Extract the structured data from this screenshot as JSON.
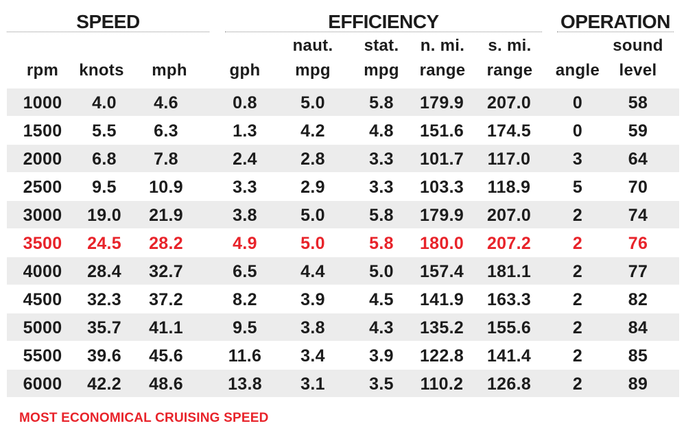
{
  "groups": {
    "speed": "SPEED",
    "efficiency": "EFFICIENCY",
    "operation": "OPERATION"
  },
  "headers": {
    "rpm": "rpm",
    "knots": "knots",
    "mph": "mph",
    "gph": "gph",
    "naut_mpg_top": "naut.",
    "naut_mpg": "mpg",
    "stat_mpg_top": "stat.",
    "stat_mpg": "mpg",
    "nmi_range_top": "n. mi.",
    "nmi_range": "range",
    "smi_range_top": "s. mi.",
    "smi_range": "range",
    "angle": "angle",
    "sound_top": "sound",
    "sound": "level"
  },
  "rows": [
    {
      "rpm": "1000",
      "knots": "4.0",
      "mph": "4.6",
      "gph": "0.8",
      "naut_mpg": "5.0",
      "stat_mpg": "5.8",
      "nmi_range": "179.9",
      "smi_range": "207.0",
      "angle": "0",
      "sound": "58"
    },
    {
      "rpm": "1500",
      "knots": "5.5",
      "mph": "6.3",
      "gph": "1.3",
      "naut_mpg": "4.2",
      "stat_mpg": "4.8",
      "nmi_range": "151.6",
      "smi_range": "174.5",
      "angle": "0",
      "sound": "59"
    },
    {
      "rpm": "2000",
      "knots": "6.8",
      "mph": "7.8",
      "gph": "2.4",
      "naut_mpg": "2.8",
      "stat_mpg": "3.3",
      "nmi_range": "101.7",
      "smi_range": "117.0",
      "angle": "3",
      "sound": "64"
    },
    {
      "rpm": "2500",
      "knots": "9.5",
      "mph": "10.9",
      "gph": "3.3",
      "naut_mpg": "2.9",
      "stat_mpg": "3.3",
      "nmi_range": "103.3",
      "smi_range": "118.9",
      "angle": "5",
      "sound": "70"
    },
    {
      "rpm": "3000",
      "knots": "19.0",
      "mph": "21.9",
      "gph": "3.8",
      "naut_mpg": "5.0",
      "stat_mpg": "5.8",
      "nmi_range": "179.9",
      "smi_range": "207.0",
      "angle": "2",
      "sound": "74"
    },
    {
      "rpm": "3500",
      "knots": "24.5",
      "mph": "28.2",
      "gph": "4.9",
      "naut_mpg": "5.0",
      "stat_mpg": "5.8",
      "nmi_range": "180.0",
      "smi_range": "207.2",
      "angle": "2",
      "sound": "76",
      "highlight": true
    },
    {
      "rpm": "4000",
      "knots": "28.4",
      "mph": "32.7",
      "gph": "6.5",
      "naut_mpg": "4.4",
      "stat_mpg": "5.0",
      "nmi_range": "157.4",
      "smi_range": "181.1",
      "angle": "2",
      "sound": "77"
    },
    {
      "rpm": "4500",
      "knots": "32.3",
      "mph": "37.2",
      "gph": "8.2",
      "naut_mpg": "3.9",
      "stat_mpg": "4.5",
      "nmi_range": "141.9",
      "smi_range": "163.3",
      "angle": "2",
      "sound": "82"
    },
    {
      "rpm": "5000",
      "knots": "35.7",
      "mph": "41.1",
      "gph": "9.5",
      "naut_mpg": "3.8",
      "stat_mpg": "4.3",
      "nmi_range": "135.2",
      "smi_range": "155.6",
      "angle": "2",
      "sound": "84"
    },
    {
      "rpm": "5500",
      "knots": "39.6",
      "mph": "45.6",
      "gph": "11.6",
      "naut_mpg": "3.4",
      "stat_mpg": "3.9",
      "nmi_range": "122.8",
      "smi_range": "141.4",
      "angle": "2",
      "sound": "85"
    },
    {
      "rpm": "6000",
      "knots": "42.2",
      "mph": "48.6",
      "gph": "13.8",
      "naut_mpg": "3.1",
      "stat_mpg": "3.5",
      "nmi_range": "110.2",
      "smi_range": "126.8",
      "angle": "2",
      "sound": "89"
    }
  ],
  "footnote": "MOST ECONOMICAL CRUISING SPEED",
  "colors": {
    "highlight": "#e8232a",
    "row_shade": "#ececec",
    "text": "#1c1c1c"
  }
}
